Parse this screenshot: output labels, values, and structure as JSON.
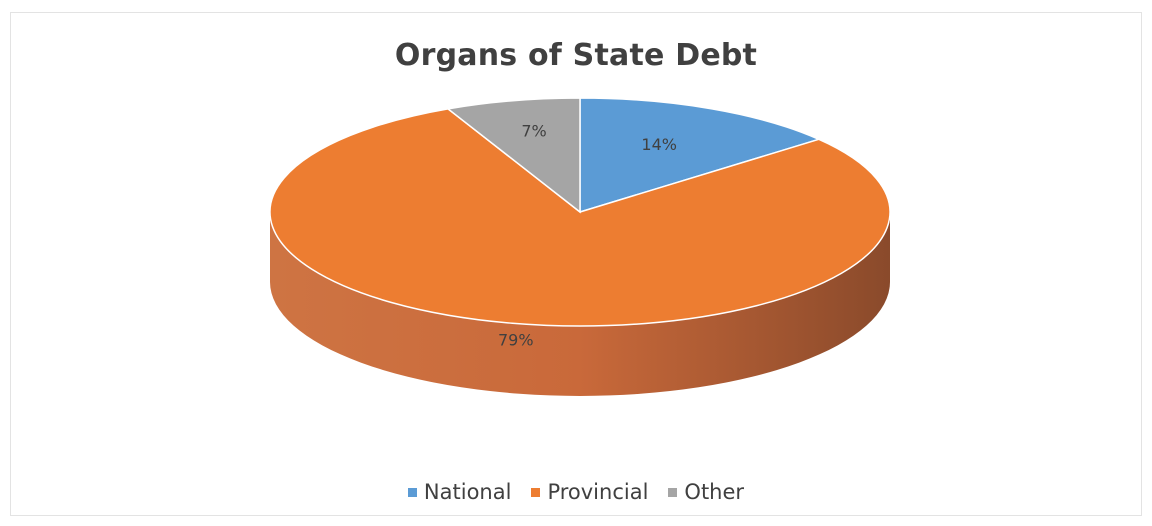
{
  "chart_data": {
    "type": "pie",
    "title": "Organs of State Debt",
    "categories": [
      "National",
      "Provincial",
      "Other"
    ],
    "values": [
      14,
      79,
      7
    ],
    "value_labels": [
      "14%",
      "79%",
      "7%"
    ],
    "unit": "%",
    "colors": [
      "#5B9BD5",
      "#ED7D31",
      "#A5A5A5"
    ],
    "side_colors": [
      "#41719C",
      "#B85F2A",
      "#7F7F7F"
    ],
    "style": "3d",
    "legend_position": "bottom"
  }
}
